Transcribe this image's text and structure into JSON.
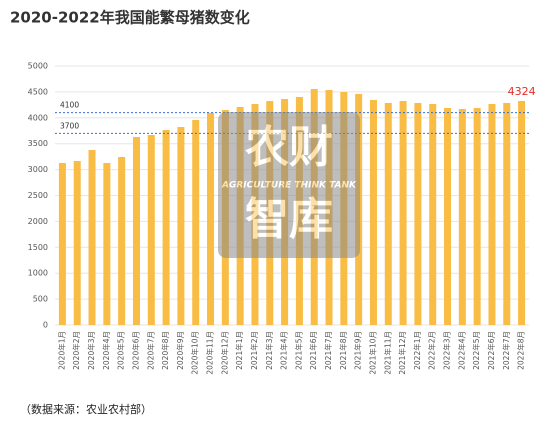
{
  "chart_data": {
    "type": "bar",
    "title": "2020-2022年我国能繁母猪数变化",
    "categories": [
      "2020年1月",
      "2020年2月",
      "2020年3月",
      "2020年4月",
      "2020年5月",
      "2020年6月",
      "2020年7月",
      "2020年8月",
      "2020年9月",
      "2020年10月",
      "2020年11月",
      "2020年12月",
      "2021年1月",
      "2021年2月",
      "2021年3月",
      "2021年4月",
      "2021年5月",
      "2021年6月",
      "2021年7月",
      "2021年8月",
      "2021年9月",
      "2021年10月",
      "2021年11月",
      "2021年12月",
      "2022年1月",
      "2022年2月",
      "2022年3月",
      "2022年4月",
      "2022年5月",
      "2022年6月",
      "2022年7月",
      "2022年8月"
    ],
    "values": [
      3127,
      3166,
      3378,
      3127,
      3243,
      3629,
      3668,
      3764,
      3822,
      3958,
      4093,
      4150,
      4208,
      4266,
      4324,
      4363,
      4402,
      4556,
      4537,
      4498,
      4459,
      4344,
      4286,
      4324,
      4286,
      4266,
      4189,
      4170,
      4189,
      4266,
      4286,
      4324
    ],
    "value_labels": [
      null,
      null,
      null,
      null,
      null,
      null,
      null,
      null,
      null,
      null,
      null,
      null,
      null,
      null,
      null,
      null,
      null,
      null,
      null,
      null,
      null,
      null,
      null,
      null,
      null,
      null,
      null,
      null,
      null,
      null,
      null,
      "4324"
    ],
    "color": "#f9bc44",
    "value_label_color": "#e0302a",
    "reference_lines": [
      4100,
      3700
    ],
    "reference_color": "#3a6fd0",
    "ylim": [
      0,
      5000
    ],
    "yticks": [
      0,
      500,
      1000,
      1500,
      2000,
      2500,
      3000,
      3500,
      4000,
      4500,
      5000
    ],
    "grid": true,
    "source": "（数据来源：农业农村部）",
    "watermark": {
      "top": "农财",
      "middle": "AGRICULTURE THINK TANK",
      "bottom": "智库"
    }
  }
}
